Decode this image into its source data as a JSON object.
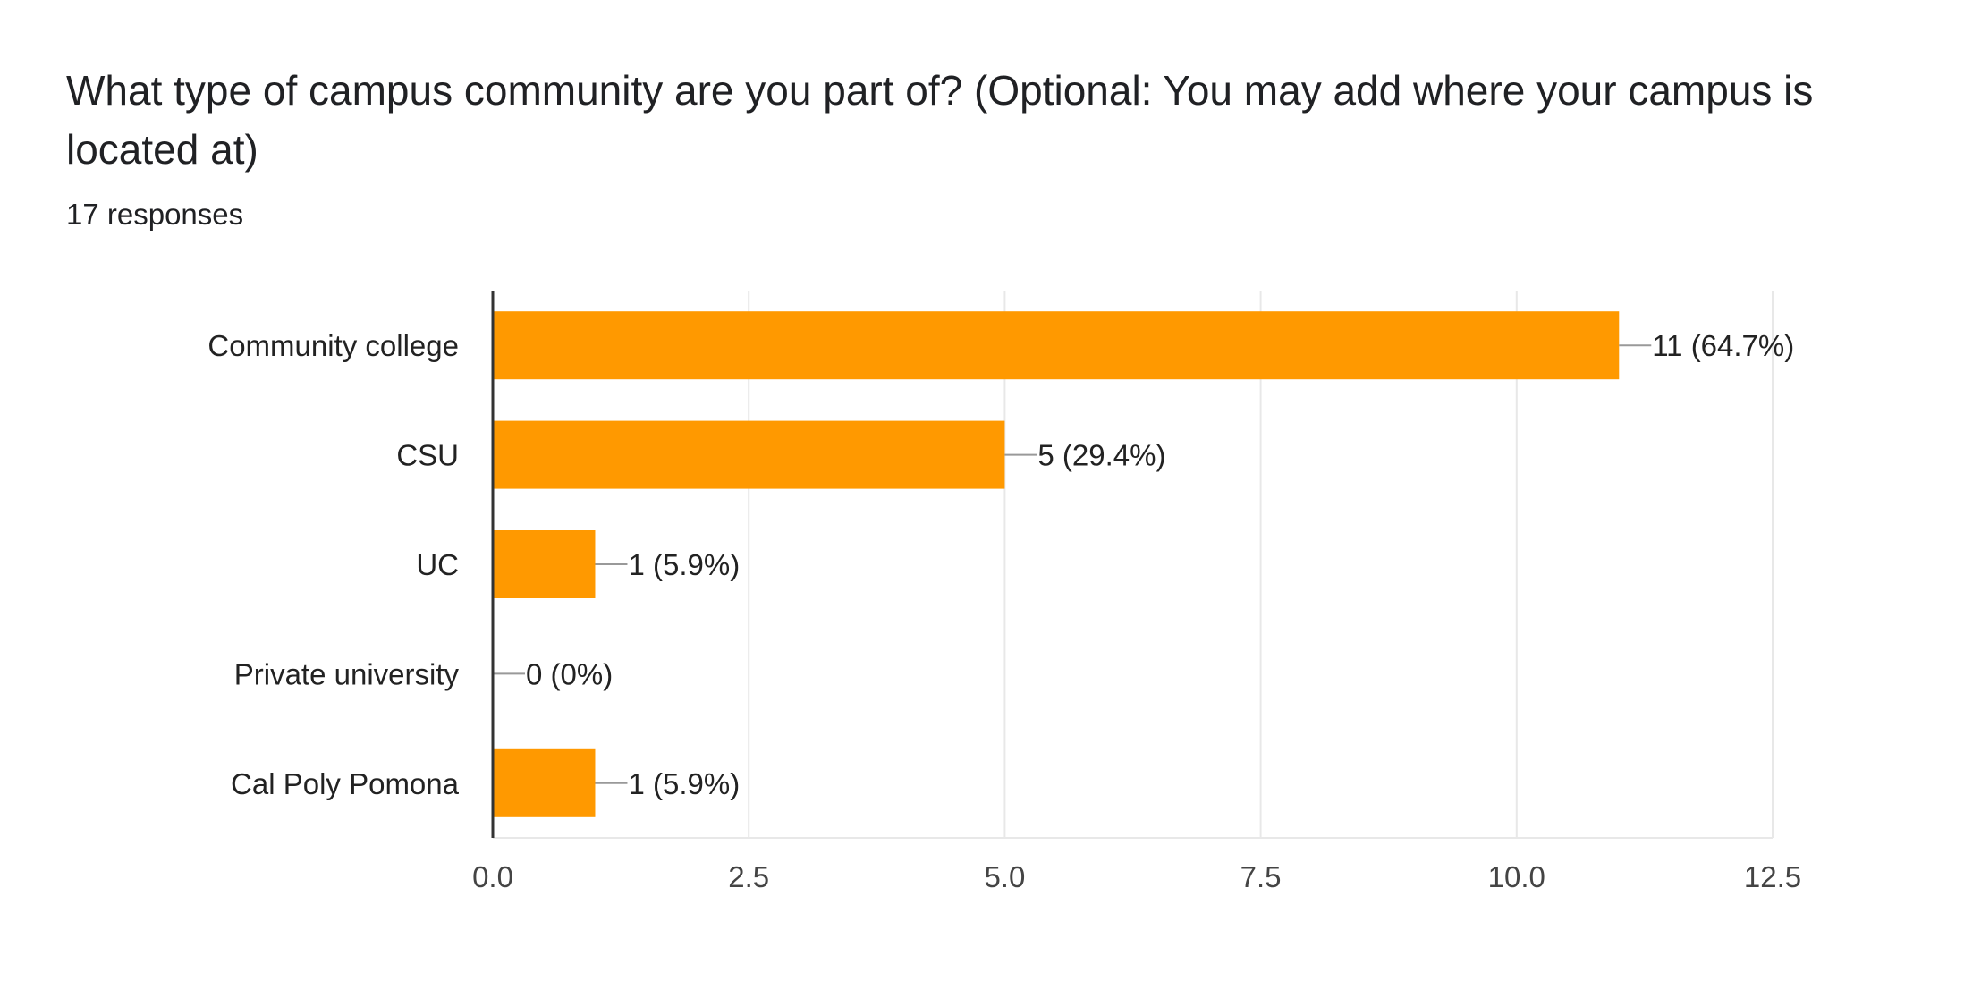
{
  "header": {
    "title": "What type of campus community are you part of? (Optional: You may add where your campus is located at)",
    "responses": "17 responses"
  },
  "colors": {
    "bar": "#FF9900",
    "grid": "#E8E8E8",
    "axis": "#333333",
    "leader": "#999999"
  },
  "chart_data": {
    "type": "bar",
    "orientation": "horizontal",
    "categories": [
      "Community college",
      "CSU",
      "UC",
      "Private university",
      "Cal Poly Pomona"
    ],
    "values": [
      11,
      5,
      1,
      0,
      1
    ],
    "data_labels": [
      "11 (64.7%)",
      "5 (29.4%)",
      "1 (5.9%)",
      "0 (0%)",
      "1 (5.9%)"
    ],
    "xlim": [
      0,
      12.5
    ],
    "xticks": [
      "0.0",
      "2.5",
      "5.0",
      "7.5",
      "10.0",
      "12.5"
    ],
    "grid": true,
    "legend": "none"
  }
}
